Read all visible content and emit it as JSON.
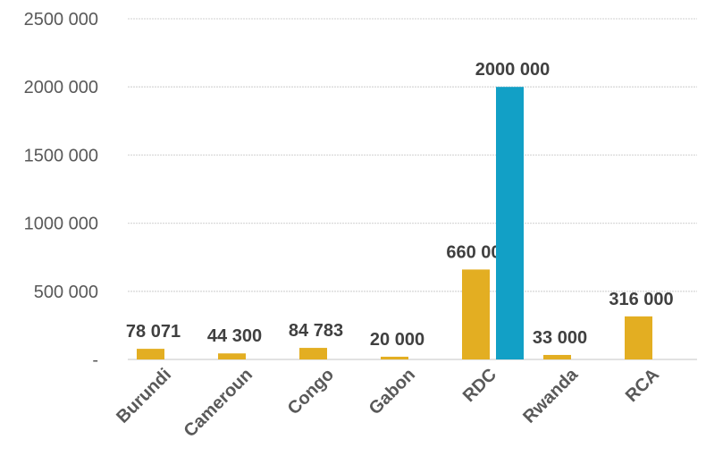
{
  "chart_data": {
    "type": "bar",
    "categories": [
      "Burundi",
      "Cameroun",
      "Congo",
      "Gabon",
      "RDC",
      "Rwanda",
      "RCA"
    ],
    "series": [
      {
        "values": [
          78071,
          44300,
          84783,
          20000,
          660000,
          33000,
          316000
        ],
        "color": "#E3AE22",
        "labels": [
          "78 071",
          "44 300",
          "84 783",
          "20 000",
          "660 000",
          "33 000",
          "316 000"
        ]
      },
      {
        "values": [
          null,
          null,
          null,
          null,
          2000000,
          null,
          null
        ],
        "color": "#12A0C6",
        "labels": [
          null,
          null,
          null,
          null,
          "2000 000",
          null,
          null
        ]
      }
    ],
    "ylim": [
      0,
      2500000
    ],
    "yticks": [
      0,
      500000,
      1000000,
      1500000,
      2000000,
      2500000
    ],
    "ytick_labels": [
      "-",
      "500 000",
      "1000 000",
      "1500 000",
      "2000 000",
      "2500 000"
    ],
    "grid": true,
    "legend": "none",
    "title": "",
    "xlabel": "",
    "ylabel": ""
  }
}
